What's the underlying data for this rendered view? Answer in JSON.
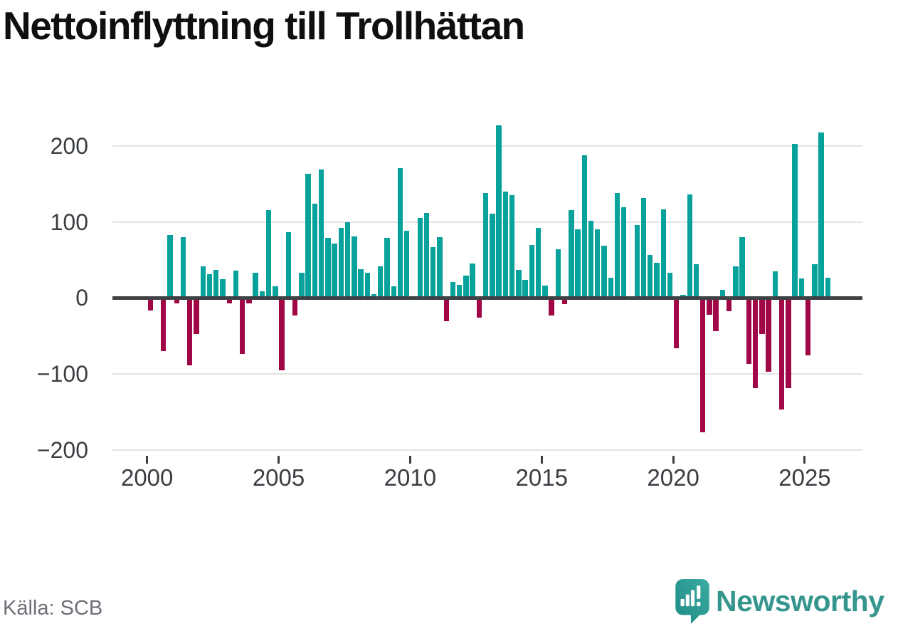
{
  "title": "Nettoinflyttning till Trollhättan",
  "source": "Källa: SCB",
  "brand": {
    "name": "Newsworthy",
    "icon": "speech-bubble-bar-chart-icon"
  },
  "colors": {
    "positive": "#07a29b",
    "negative": "#9f0747",
    "zero_axis": "#3f4245",
    "gridline": "#e4e4e4",
    "axis_label": "#3a3e43",
    "title_text": "#0f0f0f",
    "source_text": "#6d7078",
    "brand_teal": "#36968e"
  },
  "chart_data": {
    "type": "bar",
    "title": "Nettoinflyttning till Trollhättan",
    "xlabel": "",
    "ylabel": "",
    "ylim": [
      -200,
      230
    ],
    "grid": true,
    "y_ticks": [
      200,
      100,
      0,
      -100,
      -200
    ],
    "y_tick_labels": [
      "200",
      "100",
      "0",
      "−100",
      "−200"
    ],
    "x_tick_years": [
      2000,
      2005,
      2010,
      2015,
      2020,
      2025
    ],
    "x_tick_labels": [
      "2000",
      "2005",
      "2010",
      "2015",
      "2020",
      "2025"
    ],
    "categories": [
      "2000 Q1",
      "2000 Q2",
      "2000 Q3",
      "2000 Q4",
      "2001 Q1",
      "2001 Q2",
      "2001 Q3",
      "2001 Q4",
      "2002 Q1",
      "2002 Q2",
      "2002 Q3",
      "2002 Q4",
      "2003 Q1",
      "2003 Q2",
      "2003 Q3",
      "2003 Q4",
      "2004 Q1",
      "2004 Q2",
      "2004 Q3",
      "2004 Q4",
      "2005 Q1",
      "2005 Q2",
      "2005 Q3",
      "2005 Q4",
      "2006 Q1",
      "2006 Q2",
      "2006 Q3",
      "2006 Q4",
      "2007 Q1",
      "2007 Q2",
      "2007 Q3",
      "2007 Q4",
      "2008 Q1",
      "2008 Q2",
      "2008 Q3",
      "2008 Q4",
      "2009 Q1",
      "2009 Q2",
      "2009 Q3",
      "2009 Q4",
      "2010 Q1",
      "2010 Q2",
      "2010 Q3",
      "2010 Q4",
      "2011 Q1",
      "2011 Q2",
      "2011 Q3",
      "2011 Q4",
      "2012 Q1",
      "2012 Q2",
      "2012 Q3",
      "2012 Q4",
      "2013 Q1",
      "2013 Q2",
      "2013 Q3",
      "2013 Q4",
      "2014 Q1",
      "2014 Q2",
      "2014 Q3",
      "2014 Q4",
      "2015 Q1",
      "2015 Q2",
      "2015 Q3",
      "2015 Q4",
      "2016 Q1",
      "2016 Q2",
      "2016 Q3",
      "2016 Q4",
      "2017 Q1",
      "2017 Q2",
      "2017 Q3",
      "2017 Q4",
      "2018 Q1",
      "2018 Q2",
      "2018 Q3",
      "2018 Q4",
      "2019 Q1",
      "2019 Q2",
      "2019 Q3",
      "2019 Q4",
      "2020 Q1",
      "2020 Q2",
      "2020 Q3",
      "2020 Q4",
      "2021 Q1",
      "2021 Q2",
      "2021 Q3",
      "2021 Q4",
      "2022 Q1",
      "2022 Q2",
      "2022 Q3",
      "2022 Q4",
      "2023 Q1",
      "2023 Q2",
      "2023 Q3",
      "2023 Q4",
      "2024 Q1",
      "2024 Q2",
      "2024 Q3",
      "2024 Q4",
      "2025 Q1",
      "2025 Q2",
      "2025 Q3",
      "2025 Q4"
    ],
    "values": [
      -17,
      0,
      -70,
      83,
      -7,
      80,
      -89,
      -48,
      42,
      31,
      37,
      25,
      -7,
      36,
      -74,
      -7,
      33,
      9,
      116,
      15,
      -95,
      87,
      -23,
      33,
      163,
      124,
      169,
      79,
      72,
      92,
      100,
      81,
      38,
      33,
      5,
      42,
      79,
      15,
      171,
      88,
      0,
      105,
      112,
      67,
      80,
      -31,
      21,
      17,
      29,
      45,
      -26,
      138,
      111,
      227,
      140,
      135,
      37,
      24,
      70,
      92,
      16,
      -23,
      64,
      -8,
      116,
      90,
      188,
      102,
      90,
      69,
      27,
      138,
      119,
      0,
      96,
      132,
      57,
      46,
      117,
      33,
      -66,
      4,
      136,
      44,
      -177,
      -22,
      -44,
      11,
      -18,
      42,
      80,
      -87,
      -119,
      -48,
      -97,
      35,
      -147,
      -119,
      203,
      26,
      -76,
      44,
      218,
      27
    ]
  }
}
